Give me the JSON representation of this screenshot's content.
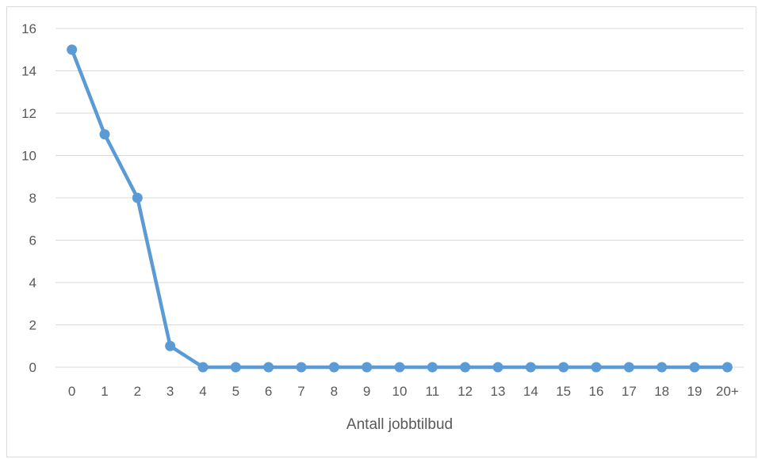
{
  "chart_data": {
    "type": "line",
    "title": "",
    "xlabel": "Antall jobbtilbud",
    "ylabel": "",
    "categories": [
      "0",
      "1",
      "2",
      "3",
      "4",
      "5",
      "6",
      "7",
      "8",
      "9",
      "10",
      "11",
      "12",
      "13",
      "14",
      "15",
      "16",
      "17",
      "18",
      "19",
      "20+"
    ],
    "series": [
      {
        "values": [
          15,
          11,
          8,
          1,
          0,
          0,
          0,
          0,
          0,
          0,
          0,
          0,
          0,
          0,
          0,
          0,
          0,
          0,
          0,
          0,
          0
        ],
        "color": "#5b9bd5"
      }
    ],
    "ylim": [
      0,
      16
    ],
    "yticks": [
      0,
      2,
      4,
      6,
      8,
      10,
      12,
      14,
      16
    ],
    "grid": true,
    "legend": "none",
    "colors": {
      "gridline": "#d9d9d9",
      "text": "#595959",
      "border": "#d9d9d9"
    }
  }
}
